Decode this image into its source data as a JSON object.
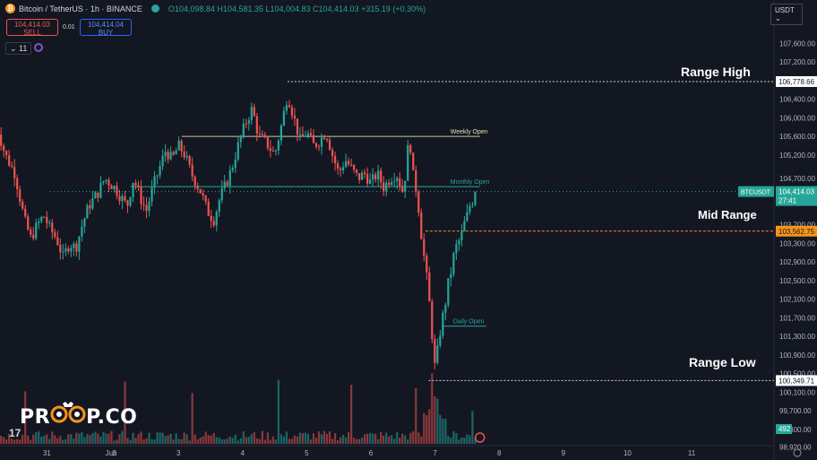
{
  "header": {
    "symbol": "Bitcoin / TetherUS · 1h · BINANCE",
    "ohlc": "O104,098.84 H104,581.35 L104,004.83 C104,414.03 +315.19 (+0.30%)"
  },
  "trade": {
    "sell_price": "104,414.03",
    "sell_label": "SELL",
    "spread": "0.01",
    "buy_price": "104,414.04",
    "buy_label": "BUY"
  },
  "indicator_count": "11",
  "currency": "USDT",
  "logo_text_left": "PR",
  "logo_text_right": "P.CO",
  "tv_logo": "17",
  "colors": {
    "background": "#131722",
    "up": "#26a69a",
    "down": "#ef5350",
    "accent": "#f7931a"
  },
  "annotations": {
    "range_high": "Range High",
    "mid_range": "Mid Range",
    "range_low": "Range Low",
    "weekly_open": "Weekly Open",
    "monthly_open": "Monthly Open",
    "daily_open": "Daily Open"
  },
  "chart_data": {
    "type": "candlestick",
    "ylim": [
      98950,
      107800
    ],
    "y_ticks": [
      107600,
      107200,
      106400,
      106000,
      105600,
      105200,
      104700,
      103700,
      103300,
      102900,
      102500,
      102100,
      101700,
      101300,
      100900,
      100500,
      100100,
      99700,
      99300,
      98920
    ],
    "x_ticks": [
      "31",
      "Jun",
      "2",
      "3",
      "4",
      "5",
      "6",
      "7",
      "8",
      "9",
      "10",
      "11"
    ],
    "price_labels": [
      {
        "value": 106778.66,
        "text": "106,778.66",
        "style": "white"
      },
      {
        "value": 104414.03,
        "text": "104,414.03",
        "title": "BTCUSDT",
        "sub": "27:41",
        "style": "green"
      },
      {
        "value": 103562.75,
        "text": "103,562.75",
        "style": "orange"
      },
      {
        "value": 100349.71,
        "text": "100,349.71",
        "style": "white"
      }
    ],
    "levels": [
      {
        "name": "Range High",
        "value": 106778.66,
        "from_day": 3.7,
        "color": "#d1d4dc",
        "dash": "2,2"
      },
      {
        "name": "Weekly Open",
        "value": 105600,
        "from_day": 2.05,
        "to_day": 6.7,
        "color": "#c8c8a0"
      },
      {
        "name": "Monthly Open",
        "value": 104520,
        "from_day": 1.25,
        "to_day": 6.7,
        "color": "#26a69a"
      },
      {
        "name": "Mid Range",
        "value": 103562.75,
        "from_day": 5.85,
        "color": "#f7931a",
        "dash": "3,2"
      },
      {
        "name": "Daily Open",
        "value": 101520,
        "from_day": 6.1,
        "to_day": 6.8,
        "color": "#26a69a"
      },
      {
        "name": "Range Low",
        "value": 100349.71,
        "from_day": 5.9,
        "color": "#d1d4dc",
        "dash": "2,2"
      },
      {
        "name": "Current",
        "value": 104414.03,
        "from_day": 0,
        "color": "#26a69a",
        "dash": "1,3"
      }
    ],
    "close_path": [
      [
        -0.85,
        105900
      ],
      [
        -0.7,
        105200
      ],
      [
        -0.55,
        104800
      ],
      [
        -0.4,
        103800
      ],
      [
        -0.3,
        103400
      ],
      [
        -0.2,
        103700
      ],
      [
        -0.1,
        103900
      ],
      [
        0.0,
        103600
      ],
      [
        0.1,
        103400
      ],
      [
        0.2,
        103000
      ],
      [
        0.3,
        103300
      ],
      [
        0.4,
        103200
      ],
      [
        0.5,
        103700
      ],
      [
        0.6,
        104100
      ],
      [
        0.75,
        104400
      ],
      [
        0.85,
        104700
      ],
      [
        1.0,
        104500
      ],
      [
        1.1,
        104300
      ],
      [
        1.2,
        104100
      ],
      [
        1.3,
        104700
      ],
      [
        1.4,
        104300
      ],
      [
        1.5,
        104000
      ],
      [
        1.6,
        104500
      ],
      [
        1.7,
        104900
      ],
      [
        1.8,
        105300
      ],
      [
        1.9,
        105100
      ],
      [
        2.0,
        105400
      ],
      [
        2.1,
        105200
      ],
      [
        2.2,
        104800
      ],
      [
        2.35,
        104400
      ],
      [
        2.45,
        104000
      ],
      [
        2.55,
        103800
      ],
      [
        2.65,
        104300
      ],
      [
        2.75,
        104600
      ],
      [
        2.85,
        105000
      ],
      [
        2.95,
        105500
      ],
      [
        3.05,
        105900
      ],
      [
        3.15,
        106200
      ],
      [
        3.25,
        105600
      ],
      [
        3.35,
        105500
      ],
      [
        3.5,
        105200
      ],
      [
        3.6,
        105800
      ],
      [
        3.7,
        106500
      ],
      [
        3.8,
        106000
      ],
      [
        3.9,
        105500
      ],
      [
        4.0,
        105700
      ],
      [
        4.1,
        105400
      ],
      [
        4.2,
        105500
      ],
      [
        4.3,
        105700
      ],
      [
        4.4,
        105200
      ],
      [
        4.5,
        104800
      ],
      [
        4.6,
        105100
      ],
      [
        4.7,
        104900
      ],
      [
        4.8,
        104700
      ],
      [
        4.9,
        104800
      ],
      [
        5.0,
        104600
      ],
      [
        5.1,
        104800
      ],
      [
        5.2,
        104500
      ],
      [
        5.3,
        104700
      ],
      [
        5.4,
        104800
      ],
      [
        5.5,
        104400
      ],
      [
        5.55,
        104900
      ],
      [
        5.6,
        105700
      ],
      [
        5.65,
        104800
      ],
      [
        5.7,
        104500
      ],
      [
        5.75,
        104000
      ],
      [
        5.8,
        103300
      ],
      [
        5.85,
        102800
      ],
      [
        5.9,
        102200
      ],
      [
        5.95,
        101400
      ],
      [
        6.0,
        100600
      ],
      [
        6.05,
        101100
      ],
      [
        6.1,
        101600
      ],
      [
        6.15,
        101900
      ],
      [
        6.2,
        102400
      ],
      [
        6.25,
        102700
      ],
      [
        6.3,
        103100
      ],
      [
        6.35,
        103300
      ],
      [
        6.4,
        103400
      ],
      [
        6.45,
        103700
      ],
      [
        6.5,
        103900
      ],
      [
        6.55,
        104150
      ],
      [
        6.6,
        104250
      ],
      [
        6.65,
        104414.03
      ]
    ],
    "volume_max": 492,
    "volume_label": "492",
    "volume_spikes": [
      [
        -0.4,
        320
      ],
      [
        1.15,
        380
      ],
      [
        2.2,
        310
      ],
      [
        3.55,
        390
      ],
      [
        4.7,
        360
      ],
      [
        5.7,
        340
      ],
      [
        5.95,
        430
      ],
      [
        6.6,
        200
      ]
    ]
  }
}
